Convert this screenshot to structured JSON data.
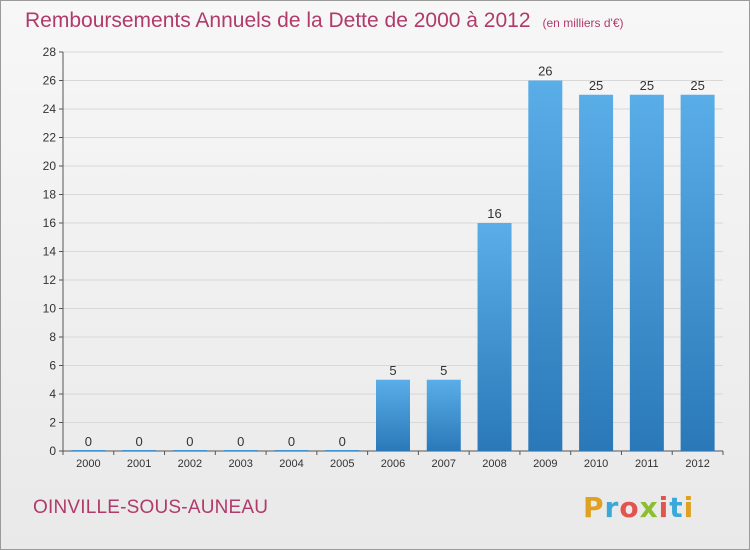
{
  "title": "Remboursements Annuels de la Dette de 2000 à 2012",
  "unit": "(en milliers d'€)",
  "commune": "OINVILLE-SOUS-AUNEAU",
  "logo": "Proxiti",
  "colors": {
    "title": "#b03a6a",
    "bar_top": "#5aaee8",
    "bar_bottom": "#2a78b8"
  },
  "chart_data": {
    "type": "bar",
    "categories": [
      "2000",
      "2001",
      "2002",
      "2003",
      "2004",
      "2005",
      "2006",
      "2007",
      "2008",
      "2009",
      "2010",
      "2011",
      "2012"
    ],
    "values": [
      0,
      0,
      0,
      0,
      0,
      0,
      5,
      5,
      16,
      26,
      25,
      25,
      25
    ],
    "ylim": [
      0,
      28
    ],
    "yticks": [
      0,
      2,
      4,
      6,
      8,
      10,
      12,
      14,
      16,
      18,
      20,
      22,
      24,
      26,
      28
    ],
    "grid": true,
    "data_labels": true
  }
}
